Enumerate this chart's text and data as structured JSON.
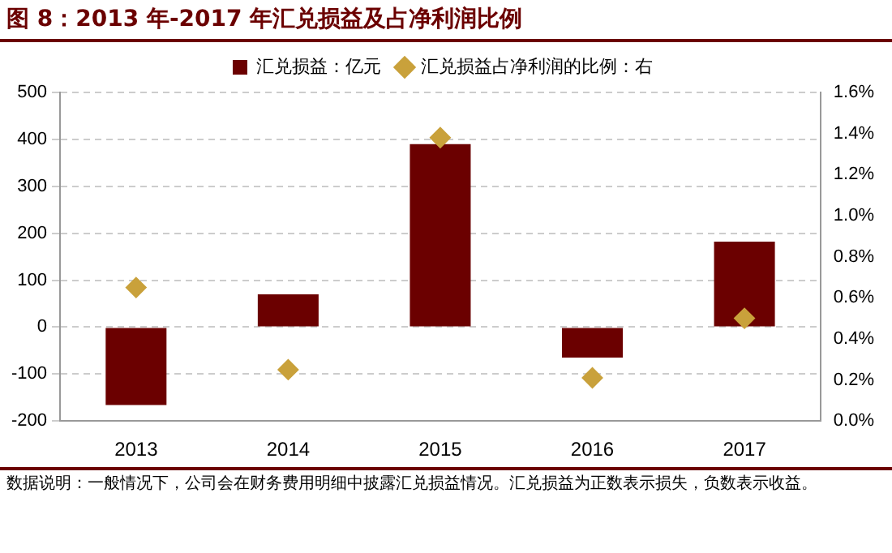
{
  "chart_data": {
    "type": "bar",
    "title": "图 8：2013 年-2017 年汇兑损益及占净利润比例",
    "categories": [
      "2013",
      "2014",
      "2015",
      "2016",
      "2017"
    ],
    "series": [
      {
        "name": "汇兑损益：亿元",
        "color": "#6b0000",
        "values": [
          -166,
          70,
          390,
          -65,
          182
        ]
      },
      {
        "name": "汇兑损益占净利润的比例：右",
        "type": "scatter",
        "axis": "y2",
        "marker": "diamond",
        "color": "#c9a13b",
        "values": [
          0.65,
          0.25,
          1.38,
          0.21,
          0.5
        ]
      }
    ],
    "ylim": [
      -200,
      500
    ],
    "yticks": [
      -200,
      -100,
      0,
      100,
      200,
      300,
      400,
      500
    ],
    "y2lim": [
      0,
      1.6
    ],
    "y2ticks": [
      {
        "value": 0,
        "label": "0.0%"
      },
      {
        "value": 0.2,
        "label": "0.2%"
      },
      {
        "value": 0.4,
        "label": "0.4%"
      },
      {
        "value": 0.6,
        "label": "0.6%"
      },
      {
        "value": 0.8,
        "label": "0.8%"
      },
      {
        "value": 1,
        "label": "1.0%"
      },
      {
        "value": 1.2,
        "label": "1.2%"
      },
      {
        "value": 1.4,
        "label": "1.4%"
      },
      {
        "value": 1.6,
        "label": "1.6%"
      }
    ],
    "grid": "y",
    "legend": "top",
    "annotations": [
      "数据说明：一般情况下，公司会在财务费用明细中披露汇兑损益情况。汇兑损益为正数表示损失，负数表示收益。"
    ]
  }
}
